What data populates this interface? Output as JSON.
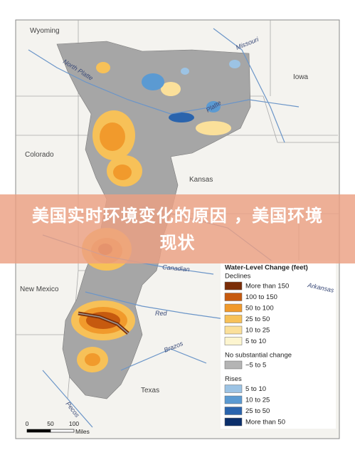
{
  "banner": {
    "title": "美国实时环境变化的原因 ，美国环境现状"
  },
  "map": {
    "states": [
      "Wyoming",
      "Iowa",
      "Colorado",
      "Kansas",
      "New Mexico",
      "Texas"
    ],
    "rivers": [
      "North Platte",
      "Missouri",
      "Platte",
      "Canadian",
      "Arkansas",
      "Red",
      "Brazos",
      "Pecos"
    ]
  },
  "legend": {
    "title": "Water-Level Change (feet)",
    "groups": [
      {
        "name": "Declines",
        "items": [
          {
            "label": "More than 150",
            "color": "#7b2d07"
          },
          {
            "label": "100 to 150",
            "color": "#c65a0f"
          },
          {
            "label": "50 to 100",
            "color": "#f19a2c"
          },
          {
            "label": "25 to 50",
            "color": "#f7c158"
          },
          {
            "label": "10 to 25",
            "color": "#fbe09a"
          },
          {
            "label": "5 to 10",
            "color": "#fdf5cf"
          }
        ]
      },
      {
        "name": "No substantial change",
        "items": [
          {
            "label": "−5 to 5",
            "color": "#b4b4b4"
          }
        ]
      },
      {
        "name": "Rises",
        "items": [
          {
            "label": "5 to 10",
            "color": "#9cc3e4"
          },
          {
            "label": "10 to 25",
            "color": "#5b9ad2"
          },
          {
            "label": "25 to 50",
            "color": "#2a64ad"
          },
          {
            "label": "More than 50",
            "color": "#0b2f6b"
          }
        ]
      }
    ]
  },
  "scale": {
    "ticks": [
      0,
      50,
      100
    ],
    "unit": "Miles"
  }
}
